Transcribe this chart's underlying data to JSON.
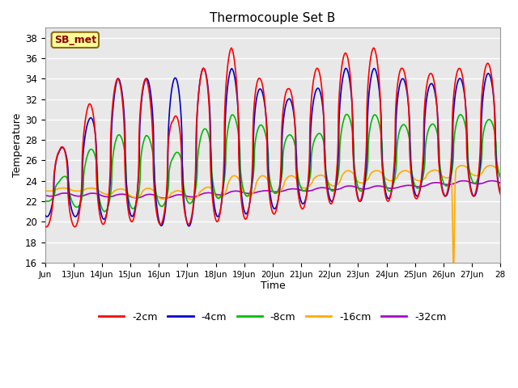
{
  "title": "Thermocouple Set B",
  "xlabel": "Time",
  "ylabel": "Temperature",
  "annotation": "SB_met",
  "xlim": [
    12,
    28
  ],
  "ylim": [
    16,
    39
  ],
  "yticks": [
    16,
    18,
    20,
    22,
    24,
    26,
    28,
    30,
    32,
    34,
    36,
    38
  ],
  "xtick_positions": [
    12,
    13,
    14,
    15,
    16,
    17,
    18,
    19,
    20,
    21,
    22,
    23,
    24,
    25,
    26,
    27,
    28
  ],
  "xtick_labels": [
    "Jun",
    "13Jun",
    "14Jun",
    "15Jun",
    "16Jun",
    "17Jun",
    "18Jun",
    "19Jun",
    "20Jun",
    "21Jun",
    "22Jun",
    "23Jun",
    "24Jun",
    "25Jun",
    "26Jun",
    "27Jun",
    "28"
  ],
  "series_colors": {
    "-2cm": "#ff0000",
    "-4cm": "#0000cc",
    "-8cm": "#00bb00",
    "-16cm": "#ffaa00",
    "-32cm": "#aa00cc"
  },
  "bg_color": "#e8e8e8",
  "grid_color": "#ffffff",
  "line_width": 1.2
}
